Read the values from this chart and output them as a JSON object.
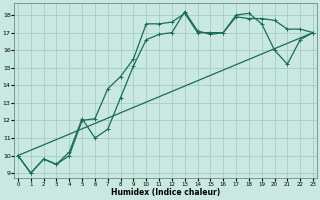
{
  "xlabel": "Humidex (Indice chaleur)",
  "bg_color": "#c8e8e0",
  "grid_color": "#a0c8bc",
  "line_color": "#1a6b5a",
  "xticks": [
    0,
    1,
    2,
    3,
    4,
    5,
    6,
    7,
    8,
    9,
    10,
    11,
    12,
    13,
    14,
    15,
    16,
    17,
    18,
    19,
    20,
    21,
    22,
    23
  ],
  "yticks": [
    9,
    10,
    11,
    12,
    13,
    14,
    15,
    16,
    17,
    18
  ],
  "line1_x": [
    0,
    1,
    2,
    3,
    4,
    5,
    6,
    7,
    8,
    9,
    10,
    11,
    12,
    13,
    14,
    15,
    16,
    17,
    18,
    19,
    20,
    21,
    22,
    23
  ],
  "line1_y": [
    10,
    9,
    9.8,
    9.5,
    10.2,
    12.1,
    11.0,
    11.5,
    13.3,
    15.1,
    16.6,
    16.9,
    17.0,
    18.2,
    17.1,
    16.9,
    17.0,
    17.9,
    17.8,
    17.8,
    17.7,
    17.2,
    17.2,
    17.0
  ],
  "line2_x": [
    0,
    1,
    2,
    3,
    4,
    5,
    6,
    7,
    8,
    9,
    10,
    11,
    12,
    13,
    14,
    15,
    16,
    17,
    18,
    19,
    20,
    21,
    22,
    23
  ],
  "line2_y": [
    10,
    9,
    9.8,
    9.5,
    10.0,
    12.0,
    12.1,
    13.8,
    14.5,
    15.5,
    17.5,
    17.5,
    17.6,
    18.1,
    17.0,
    17.0,
    17.0,
    18.0,
    18.1,
    17.5,
    16.0,
    15.2,
    16.6,
    17.0
  ],
  "line3_x": [
    0,
    23
  ],
  "line3_y": [
    10,
    17.0
  ],
  "marker_style": "+",
  "marker_size": 3,
  "line_width": 0.9
}
